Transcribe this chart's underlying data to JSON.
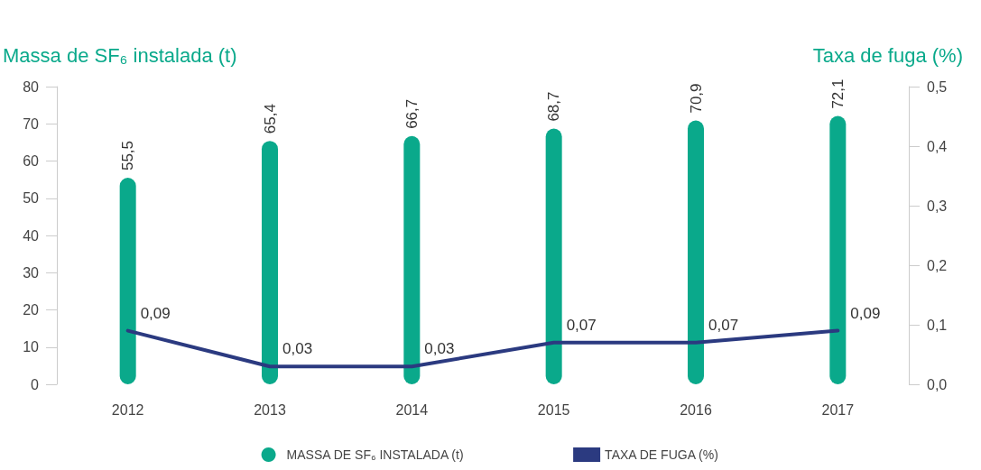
{
  "chart_data": {
    "type": "bar",
    "ylabel": "Massa de SF₆ instalada (t)",
    "y2label": "Taxa de fuga (%)",
    "categories": [
      "2012",
      "2013",
      "2014",
      "2015",
      "2016",
      "2017"
    ],
    "series": [
      {
        "name": "MASSA DE SF₆ INSTALADA (t)",
        "color": "#0aa98b",
        "values": [
          55.5,
          65.4,
          66.7,
          68.7,
          70.9,
          72.1
        ],
        "value_labels": [
          "55,5",
          "65,4",
          "66,7",
          "68,7",
          "70,9",
          "72,1"
        ]
      },
      {
        "name": "TAXA DE FUGA (%)",
        "type": "line",
        "axis": "y2",
        "color": "#2b3a80",
        "values": [
          0.09,
          0.03,
          0.03,
          0.07,
          0.07,
          0.09
        ],
        "value_labels": [
          "0,09",
          "0,03",
          "0,03",
          "0,07",
          "0,07",
          "0,09"
        ]
      }
    ],
    "ylim": [
      0,
      80
    ],
    "yticks": [
      0,
      10,
      20,
      30,
      40,
      50,
      60,
      70,
      80
    ],
    "y2lim": [
      0,
      0.5
    ],
    "y2ticks": [
      {
        "value": 0,
        "label": "0,0"
      },
      {
        "value": 0.1,
        "label": "0,1"
      },
      {
        "value": 0.2,
        "label": "0,2"
      },
      {
        "value": 0.3,
        "label": "0,3"
      },
      {
        "value": 0.4,
        "label": "0,4"
      },
      {
        "value": 0.5,
        "label": "0,5"
      }
    ],
    "grid": false,
    "legend": "bottom",
    "marker": "none",
    "line_style": "solid"
  }
}
